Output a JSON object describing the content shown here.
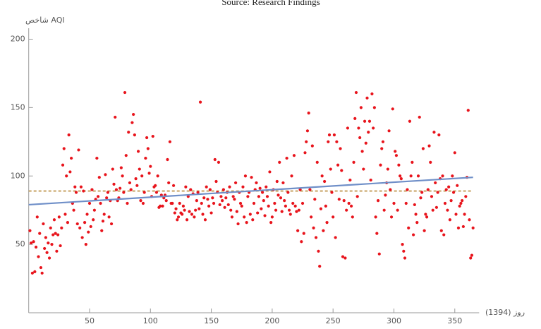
{
  "chart_data": {
    "type": "scatter",
    "title": "Source: Research Findings",
    "y_label": "شاخص AQI",
    "x_label": "روز (1394)",
    "color": "#e8141c",
    "trend": {
      "x": [
        0,
        365
      ],
      "y": [
        79,
        99
      ],
      "color": "#6f8fc8"
    },
    "mean": {
      "value": 89,
      "color": "#b88a3a"
    },
    "xlim": [
      0,
      370
    ],
    "ylim": [
      0,
      208
    ],
    "xticks": [
      50,
      100,
      150,
      200,
      250,
      300,
      350
    ],
    "yticks": [
      50,
      100,
      150,
      200
    ],
    "grid": false,
    "x": [
      1,
      2,
      3,
      4,
      5,
      6,
      7,
      8,
      9,
      10,
      11,
      12,
      13,
      14,
      15,
      16,
      17,
      18,
      19,
      20,
      21,
      22,
      23,
      24,
      25,
      26,
      27,
      28,
      29,
      30,
      31,
      32,
      33,
      34,
      35,
      36,
      37,
      38,
      39,
      40,
      41,
      42,
      43,
      44,
      45,
      46,
      47,
      48,
      49,
      50,
      51,
      52,
      53,
      54,
      55,
      56,
      57,
      58,
      59,
      60,
      61,
      62,
      63,
      64,
      65,
      66,
      67,
      68,
      69,
      70,
      71,
      72,
      73,
      74,
      75,
      76,
      77,
      78,
      79,
      80,
      81,
      82,
      83,
      84,
      85,
      86,
      87,
      88,
      89,
      90,
      91,
      92,
      93,
      94,
      95,
      96,
      97,
      98,
      99,
      100,
      101,
      102,
      103,
      104,
      105,
      106,
      107,
      108,
      109,
      110,
      111,
      112,
      113,
      114,
      115,
      116,
      117,
      118,
      119,
      120,
      121,
      122,
      123,
      124,
      125,
      126,
      127,
      128,
      129,
      130,
      131,
      132,
      133,
      134,
      135,
      136,
      137,
      138,
      139,
      140,
      141,
      142,
      143,
      144,
      145,
      146,
      147,
      148,
      149,
      150,
      151,
      152,
      153,
      154,
      155,
      156,
      157,
      158,
      159,
      160,
      161,
      162,
      163,
      164,
      165,
      166,
      167,
      168,
      169,
      170,
      171,
      172,
      173,
      174,
      175,
      176,
      177,
      178,
      179,
      180,
      181,
      182,
      183,
      184,
      185,
      186,
      187,
      188,
      189,
      190,
      191,
      192,
      193,
      194,
      195,
      196,
      197,
      198,
      199,
      200,
      201,
      202,
      203,
      204,
      205,
      206,
      207,
      208,
      209,
      210,
      211,
      212,
      213,
      214,
      215,
      216,
      217,
      218,
      219,
      220,
      221,
      222,
      223,
      224,
      225,
      226,
      227,
      228,
      229,
      230,
      231,
      232,
      233,
      234,
      235,
      236,
      237,
      238,
      239,
      240,
      241,
      242,
      243,
      244,
      245,
      246,
      247,
      248,
      249,
      250,
      251,
      252,
      253,
      254,
      255,
      256,
      257,
      258,
      259,
      260,
      261,
      262,
      263,
      264,
      265,
      266,
      267,
      268,
      269,
      270,
      271,
      272,
      273,
      274,
      275,
      276,
      277,
      278,
      279,
      280,
      281,
      282,
      283,
      284,
      285,
      286,
      287,
      288,
      289,
      290,
      291,
      292,
      293,
      294,
      295,
      296,
      297,
      298,
      299,
      300,
      301,
      302,
      303,
      304,
      305,
      306,
      307,
      308,
      309,
      310,
      311,
      312,
      313,
      314,
      315,
      316,
      317,
      318,
      319,
      320,
      321,
      322,
      323,
      324,
      325,
      326,
      327,
      328,
      329,
      330,
      331,
      332,
      333,
      334,
      335,
      336,
      337,
      338,
      339,
      340,
      341,
      342,
      343,
      344,
      345,
      346,
      347,
      348,
      349,
      350,
      351,
      352,
      353,
      354,
      355,
      356,
      357,
      358,
      359,
      360,
      361,
      362,
      363,
      364,
      365
    ],
    "values": [
      60,
      51,
      29,
      52,
      30,
      48,
      70,
      41,
      58,
      33,
      29,
      65,
      47,
      55,
      44,
      51,
      40,
      62,
      50,
      57,
      68,
      58,
      45,
      57,
      70,
      49,
      62,
      108,
      120,
      72,
      100,
      66,
      130,
      103,
      113,
      80,
      75,
      92,
      88,
      65,
      119,
      62,
      92,
      55,
      89,
      66,
      50,
      72,
      59,
      80,
      63,
      90,
      68,
      75,
      83,
      113,
      85,
      99,
      80,
      60,
      67,
      72,
      101,
      84,
      88,
      70,
      82,
      65,
      105,
      94,
      143,
      90,
      82,
      84,
      91,
      106,
      100,
      88,
      161,
      115,
      80,
      132,
      95,
      90,
      139,
      145,
      130,
      98,
      93,
      118,
      105,
      82,
      100,
      80,
      88,
      113,
      128,
      120,
      102,
      107,
      85,
      129,
      92,
      93,
      88,
      100,
      77,
      78,
      86,
      78,
      84,
      86,
      82,
      112,
      95,
      125,
      80,
      80,
      93,
      73,
      76,
      68,
      70,
      80,
      73,
      72,
      78,
      75,
      92,
      68,
      85,
      74,
      90,
      72,
      87,
      70,
      75,
      82,
      88,
      76,
      154,
      80,
      72,
      84,
      68,
      92,
      83,
      78,
      90,
      73,
      84,
      80,
      112,
      96,
      88,
      110,
      79,
      85,
      82,
      90,
      77,
      84,
      88,
      79,
      92,
      75,
      70,
      85,
      83,
      95,
      74,
      65,
      88,
      80,
      78,
      92,
      70,
      100,
      66,
      85,
      88,
      72,
      99,
      68,
      80,
      90,
      95,
      73,
      85,
      91,
      76,
      88,
      82,
      71,
      92,
      85,
      78,
      103,
      66,
      70,
      90,
      80,
      75,
      96,
      86,
      110,
      84,
      74,
      95,
      82,
      78,
      113,
      88,
      75,
      72,
      100,
      80,
      115,
      78,
      74,
      60,
      75,
      90,
      52,
      80,
      58,
      117,
      125,
      133,
      146,
      90,
      70,
      122,
      62,
      83,
      55,
      110,
      45,
      34,
      76,
      100,
      60,
      96,
      78,
      66,
      125,
      130,
      105,
      88,
      70,
      130,
      55,
      125,
      108,
      83,
      120,
      104,
      41,
      82,
      40,
      75,
      135,
      80,
      97,
      78,
      70,
      110,
      142,
      161,
      85,
      135,
      128,
      150,
      118,
      105,
      140,
      124,
      157,
      132,
      140,
      97,
      160,
      135,
      150,
      70,
      58,
      82,
      43,
      108,
      120,
      125,
      75,
      86,
      95,
      105,
      133,
      90,
      70,
      149,
      80,
      118,
      115,
      75,
      108,
      100,
      98,
      50,
      45,
      40,
      80,
      90,
      62,
      140,
      100,
      110,
      57,
      79,
      72,
      66,
      100,
      143,
      84,
      88,
      120,
      60,
      72,
      70,
      90,
      122,
      110,
      85,
      75,
      132,
      95,
      77,
      88,
      130,
      98,
      60,
      100,
      57,
      80,
      90,
      75,
      92,
      68,
      82,
      100,
      88,
      117,
      72,
      93,
      62,
      78,
      80,
      82,
      63,
      72,
      85,
      99,
      148,
      68,
      40,
      42,
      62
    ]
  }
}
